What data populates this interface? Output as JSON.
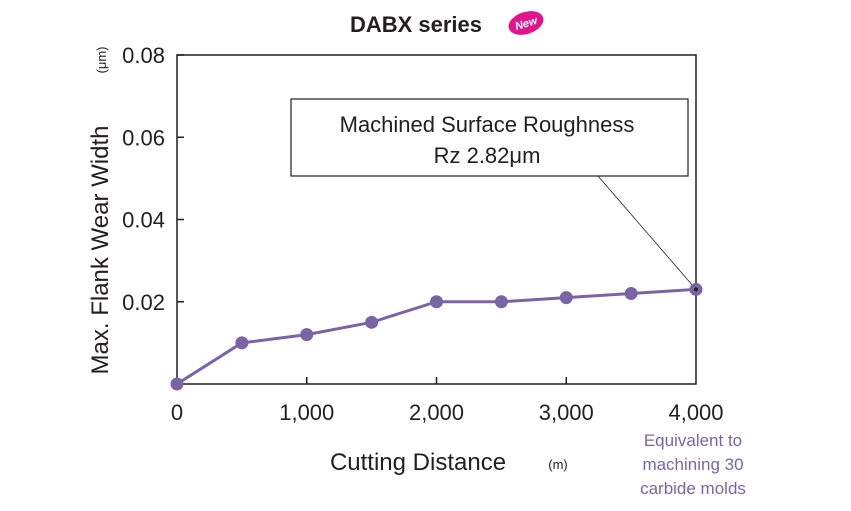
{
  "chart_data": {
    "type": "line",
    "title": "DABX series",
    "badge": "New",
    "xlabel": "Cutting Distance",
    "xunit": "(m)",
    "ylabel": "Max. Flank Wear Width",
    "yunit": "(μm)",
    "xlim": [
      0,
      4000
    ],
    "ylim": [
      0,
      0.08
    ],
    "xticks": [
      {
        "value": 0,
        "label": "0"
      },
      {
        "value": 1000,
        "label": "1,000"
      },
      {
        "value": 2000,
        "label": "2,000"
      },
      {
        "value": 3000,
        "label": "3,000"
      },
      {
        "value": 4000,
        "label": "4,000"
      }
    ],
    "yticks": [
      {
        "value": 0.02,
        "label": "0.02"
      },
      {
        "value": 0.04,
        "label": "0.04"
      },
      {
        "value": 0.06,
        "label": "0.06"
      },
      {
        "value": 0.08,
        "label": "0.08"
      }
    ],
    "series": [
      {
        "x": [
          0,
          500,
          1000,
          1500,
          2000,
          2500,
          3000,
          3500,
          4000
        ],
        "y": [
          0.0,
          0.01,
          0.012,
          0.015,
          0.02,
          0.02,
          0.021,
          0.022,
          0.023
        ],
        "color": "#7b64a6"
      }
    ],
    "callout": {
      "line1": "Machined Surface Roughness",
      "line2": "Rz 2.82μm",
      "target_x": 4000,
      "target_y": 0.023
    },
    "note": [
      "Equivalent to",
      "machining 30",
      "carbide molds"
    ],
    "grid": false,
    "badge_color": "#e0148c"
  }
}
